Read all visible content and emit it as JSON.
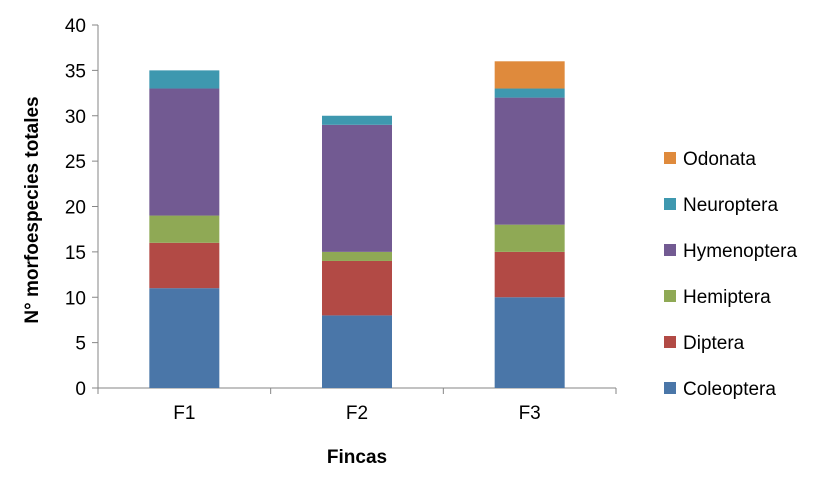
{
  "chart_data": {
    "type": "bar",
    "stacked": true,
    "categories": [
      "F1",
      "F2",
      "F3"
    ],
    "series": [
      {
        "name": "Coleoptera",
        "values": [
          11,
          8,
          10
        ],
        "color": "#4A76A8"
      },
      {
        "name": "Diptera",
        "values": [
          5,
          6,
          5
        ],
        "color": "#B24A45"
      },
      {
        "name": "Hemiptera",
        "values": [
          3,
          1,
          3
        ],
        "color": "#8FA955"
      },
      {
        "name": "Hymenoptera",
        "values": [
          14,
          14,
          14
        ],
        "color": "#725A92"
      },
      {
        "name": "Neuroptera",
        "values": [
          2,
          1,
          1
        ],
        "color": "#3E98AF"
      },
      {
        "name": "Odonata",
        "values": [
          0,
          0,
          3
        ],
        "color": "#DF8A3C"
      }
    ],
    "xlabel": "Fincas",
    "ylabel": "N° morfoespecies totales",
    "ylim": [
      0,
      40
    ],
    "yticks": [
      0,
      5,
      10,
      15,
      20,
      25,
      30,
      35,
      40
    ],
    "grid": false,
    "legend_position": "right",
    "legend_order": "reversed"
  }
}
